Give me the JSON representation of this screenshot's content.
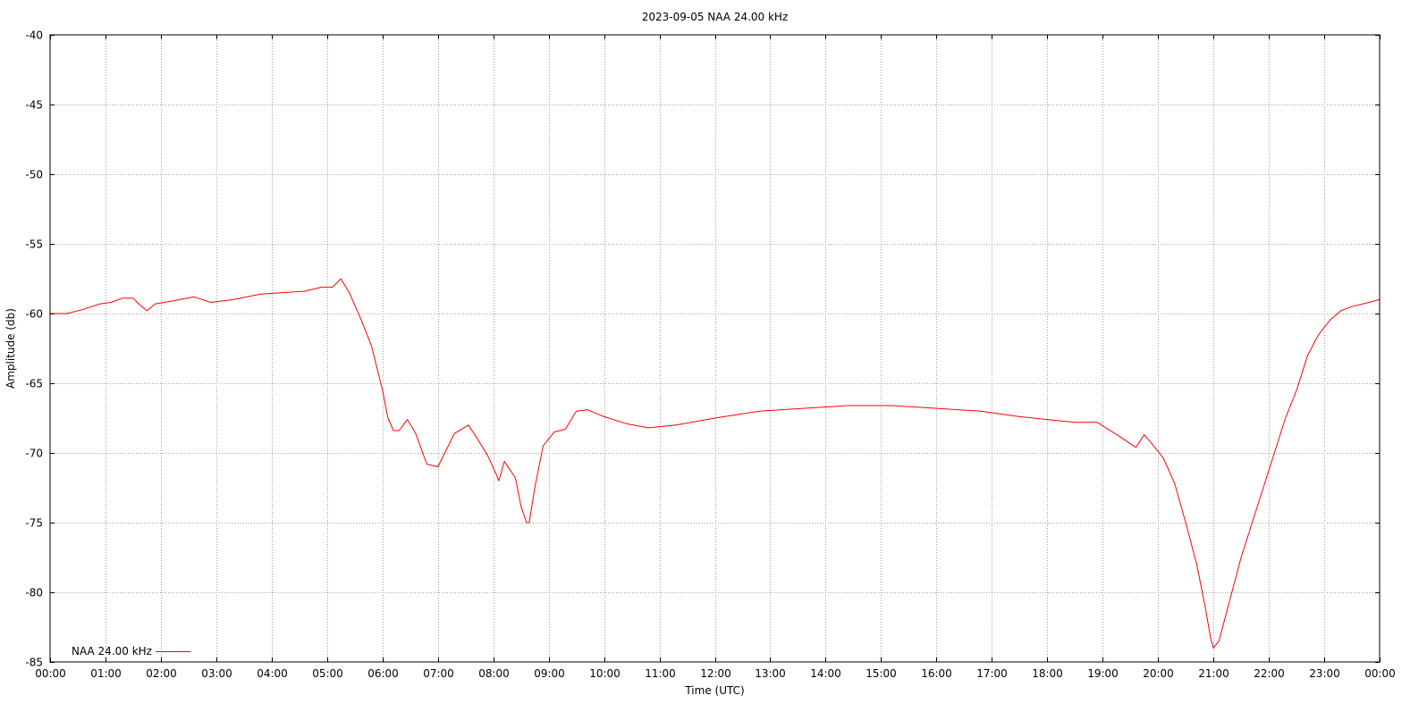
{
  "chart_data": {
    "type": "line",
    "title": "2023-09-05 NAA 24.00 kHz",
    "xlabel": "Time (UTC)",
    "ylabel": "Amplitude (db)",
    "xlim": [
      0,
      24
    ],
    "ylim": [
      -85,
      -40
    ],
    "x_tick_labels": [
      "00:00",
      "01:00",
      "02:00",
      "03:00",
      "04:00",
      "05:00",
      "06:00",
      "07:00",
      "08:00",
      "09:00",
      "10:00",
      "11:00",
      "12:00",
      "13:00",
      "14:00",
      "15:00",
      "16:00",
      "17:00",
      "18:00",
      "19:00",
      "20:00",
      "21:00",
      "22:00",
      "23:00",
      "00:00"
    ],
    "y_ticks": [
      -40,
      -45,
      -50,
      -55,
      -60,
      -65,
      -70,
      -75,
      -80,
      -85
    ],
    "grid": true,
    "legend_position": "bottom-left",
    "series": [
      {
        "name": "NAA 24.00 kHz",
        "color": "#ff0000",
        "x": [
          0.0,
          0.3,
          0.6,
          0.9,
          1.1,
          1.3,
          1.5,
          1.6,
          1.75,
          1.9,
          2.2,
          2.6,
          2.9,
          3.3,
          3.8,
          4.2,
          4.6,
          4.9,
          5.1,
          5.25,
          5.4,
          5.6,
          5.8,
          6.0,
          6.1,
          6.2,
          6.3,
          6.45,
          6.6,
          6.8,
          7.0,
          7.1,
          7.3,
          7.55,
          7.7,
          7.9,
          8.05,
          8.1,
          8.2,
          8.3,
          8.4,
          8.5,
          8.6,
          8.65,
          8.75,
          8.9,
          9.1,
          9.3,
          9.5,
          9.7,
          10.0,
          10.4,
          10.8,
          11.3,
          12.0,
          12.8,
          13.6,
          14.4,
          15.2,
          16.0,
          16.8,
          17.5,
          18.0,
          18.5,
          18.9,
          19.3,
          19.6,
          19.75,
          19.9,
          20.1,
          20.3,
          20.5,
          20.7,
          20.85,
          20.95,
          21.0,
          21.1,
          21.3,
          21.5,
          21.7,
          21.9,
          22.1,
          22.3,
          22.5,
          22.7,
          22.9,
          23.1,
          23.3,
          23.5,
          23.7,
          24.0
        ],
        "y": [
          -60.0,
          -60.0,
          -59.7,
          -59.3,
          -59.2,
          -58.9,
          -58.9,
          -59.3,
          -59.8,
          -59.3,
          -59.1,
          -58.8,
          -59.2,
          -59.0,
          -58.6,
          -58.5,
          -58.4,
          -58.1,
          -58.1,
          -57.5,
          -58.5,
          -60.3,
          -62.3,
          -65.5,
          -67.5,
          -68.4,
          -68.4,
          -67.6,
          -68.6,
          -70.8,
          -71.0,
          -70.2,
          -68.6,
          -68.0,
          -68.9,
          -70.2,
          -71.5,
          -72.0,
          -70.6,
          -71.2,
          -71.8,
          -73.8,
          -75.0,
          -75.0,
          -72.5,
          -69.5,
          -68.5,
          -68.3,
          -67.0,
          -66.9,
          -67.4,
          -67.9,
          -68.2,
          -68.0,
          -67.5,
          -67.0,
          -66.8,
          -66.6,
          -66.6,
          -66.8,
          -67.0,
          -67.4,
          -67.6,
          -67.8,
          -67.8,
          -68.8,
          -69.6,
          -68.7,
          -69.4,
          -70.4,
          -72.2,
          -75.0,
          -78.0,
          -81.0,
          -83.3,
          -84.0,
          -83.5,
          -80.5,
          -77.5,
          -75.0,
          -72.5,
          -70.0,
          -67.5,
          -65.5,
          -63.0,
          -61.5,
          -60.5,
          -59.8,
          -59.5,
          -59.3,
          -59.0
        ]
      }
    ]
  }
}
